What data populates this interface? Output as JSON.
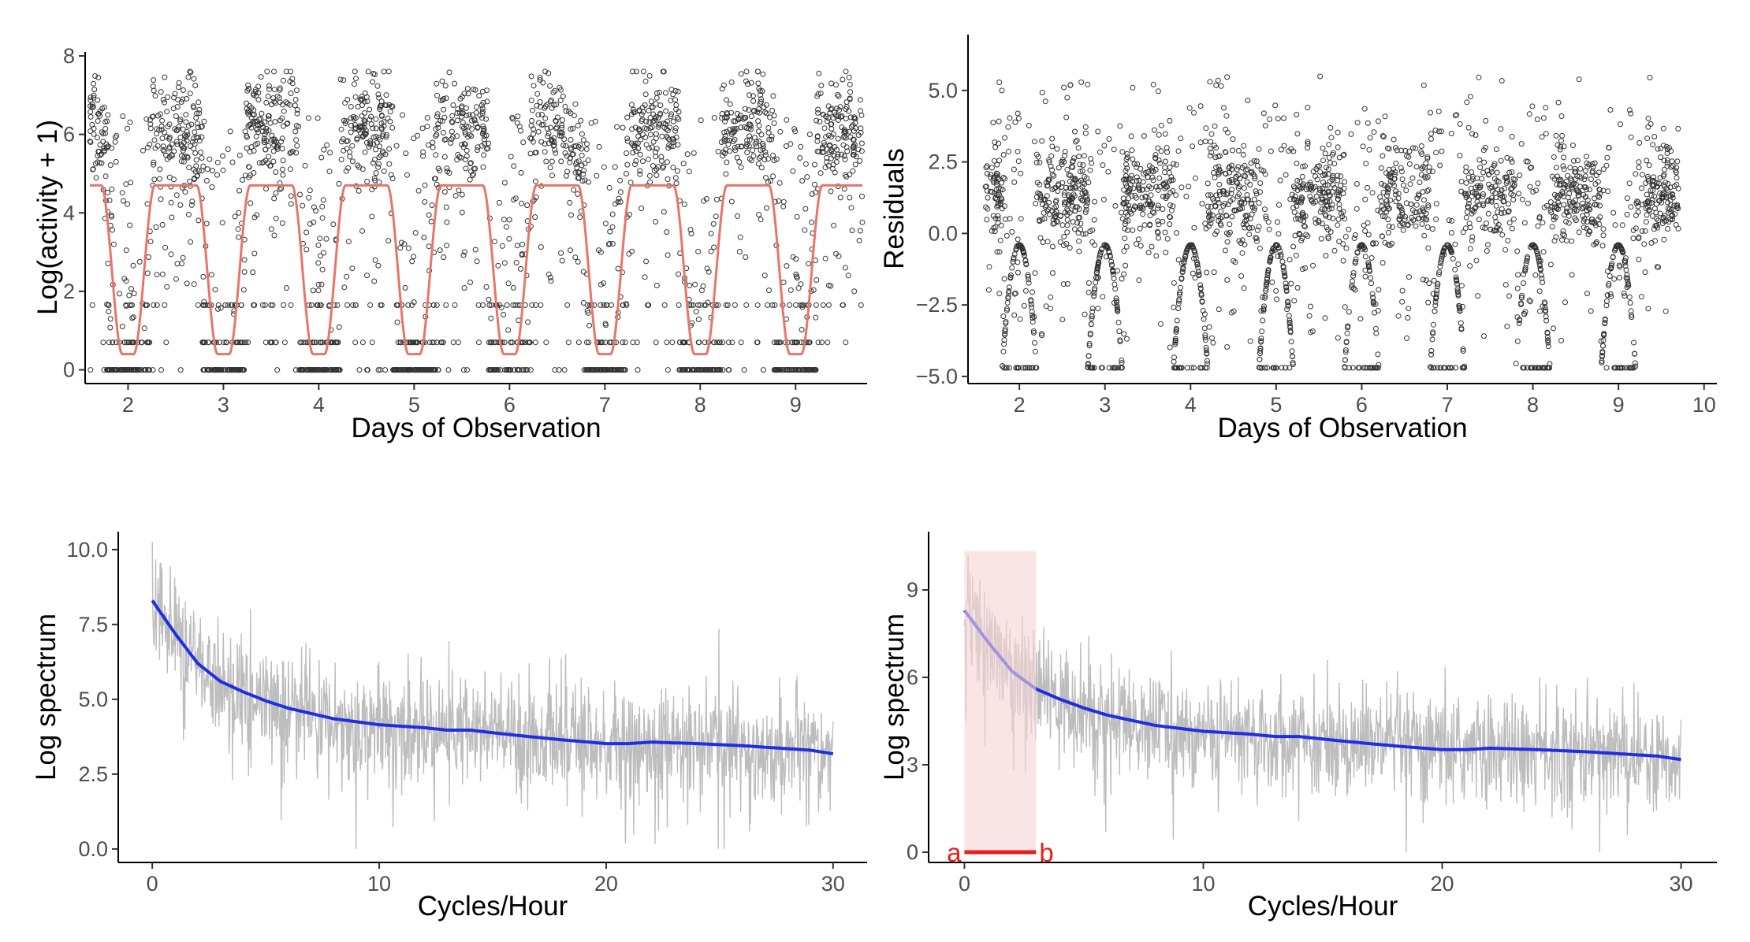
{
  "figure": {
    "colors": {
      "points": "#333333",
      "fit": "#E8756A",
      "raw_spectrum": "#BDBDBD",
      "smooth": "#1F2FE0",
      "highlight": "#F6D3D7",
      "interval": "#E81E1E"
    }
  },
  "chart_data": [
    {
      "type": "scatter",
      "xlabel": "Days of Observation",
      "ylabel": "Log(activity + 1)",
      "xlim": [
        1.55,
        9.75
      ],
      "ylim": [
        -0.35,
        8.1
      ],
      "xticks": [
        2,
        3,
        4,
        5,
        6,
        7,
        8,
        9
      ],
      "yticks": [
        0,
        2,
        4,
        6,
        8
      ],
      "grid": false,
      "x_range": [
        1.6,
        9.7
      ],
      "point_bands": {
        "active_level_mean": 6.1,
        "active_level_spread": 0.7,
        "rest_level": 0,
        "secondary_rest_level": 0.7,
        "tertiary_rest_level": 1.65
      },
      "series": [
        {
          "style": "points",
          "note_values": "log activity counts, periodic: high 5-7.5 during active phases, 0 during rest"
        },
        {
          "style": "line",
          "color": "#E8756A",
          "shape": "periodic fitted curve",
          "max": 4.7,
          "min": 0.4,
          "period_days": 1,
          "minima_at": [
            2.0,
            3.0,
            4.0,
            5.0,
            6.0,
            7.0,
            8.0,
            9.0
          ]
        }
      ]
    },
    {
      "type": "scatter",
      "xlabel": "Days of Observation",
      "ylabel": "Residuals",
      "xlim": [
        1.4,
        10.15
      ],
      "ylim": [
        -5.25,
        6.95
      ],
      "xticks": [
        2,
        3,
        4,
        5,
        6,
        7,
        8,
        9,
        10
      ],
      "yticks": [
        -5.0,
        -2.5,
        0.0,
        2.5,
        5.0
      ],
      "ytick_labels": [
        "−5.0",
        "−2.5",
        "0.0",
        "2.5",
        "5.0"
      ],
      "grid": false,
      "x_range": [
        1.6,
        9.7
      ],
      "features": {
        "active_cluster_mean": 1.3,
        "arc_top": -0.4,
        "arc_bottom": -4.7,
        "floor": -4.7,
        "spikes_max": 6.3
      }
    },
    {
      "type": "line",
      "xlabel": "Cycles/Hour",
      "ylabel": "Log spectrum",
      "xlim": [
        -1.5,
        31.5
      ],
      "ylim": [
        -0.45,
        10.6
      ],
      "xticks": [
        0,
        10,
        20,
        30
      ],
      "yticks": [
        0.0,
        2.5,
        5.0,
        7.5,
        10.0
      ],
      "ytick_labels": [
        "0.0",
        "2.5",
        "5.0",
        "7.5",
        "10.0"
      ],
      "grid": false,
      "series": [
        {
          "style": "raw",
          "color": "#BDBDBD",
          "x_range": [
            0,
            30
          ],
          "y_max": 10.5,
          "y_min": 0
        },
        {
          "style": "smooth",
          "color": "#1F2FE0",
          "x": [
            0,
            1,
            2,
            3,
            4,
            5,
            6,
            8,
            10,
            12,
            13,
            14,
            16,
            18,
            20,
            21,
            22,
            24,
            26,
            28,
            29,
            30
          ],
          "y": [
            8.3,
            7.2,
            6.2,
            5.6,
            5.25,
            4.95,
            4.7,
            4.35,
            4.15,
            4.05,
            3.97,
            3.97,
            3.8,
            3.65,
            3.52,
            3.52,
            3.57,
            3.52,
            3.45,
            3.35,
            3.3,
            3.18
          ]
        }
      ]
    },
    {
      "type": "line",
      "xlabel": "Cycles/Hour",
      "ylabel": "Log spectrum",
      "xlim": [
        -1.5,
        31.5
      ],
      "ylim": [
        -0.35,
        11.0
      ],
      "xticks": [
        0,
        10,
        20,
        30
      ],
      "yticks": [
        0,
        3,
        6,
        9
      ],
      "ytick_labels": [
        "0",
        "3",
        "6",
        "9"
      ],
      "grid": false,
      "highlight": {
        "x_from": 0,
        "x_to": 3
      },
      "interval": {
        "from": 0,
        "to": 3,
        "y": 0,
        "labels": [
          "a",
          "b"
        ]
      },
      "series": [
        {
          "style": "raw",
          "color": "#BDBDBD",
          "x_range": [
            0,
            30
          ],
          "y_max": 10.4,
          "y_min": 0
        },
        {
          "style": "smooth",
          "color": "#1F2FE0",
          "x": [
            0,
            1,
            2,
            3,
            4,
            5,
            6,
            8,
            10,
            12,
            13,
            14,
            16,
            18,
            20,
            21,
            22,
            24,
            26,
            28,
            29,
            30
          ],
          "y": [
            8.3,
            7.2,
            6.2,
            5.6,
            5.25,
            4.95,
            4.7,
            4.35,
            4.15,
            4.05,
            3.97,
            3.97,
            3.8,
            3.65,
            3.52,
            3.52,
            3.57,
            3.52,
            3.45,
            3.35,
            3.3,
            3.18
          ]
        }
      ]
    }
  ]
}
